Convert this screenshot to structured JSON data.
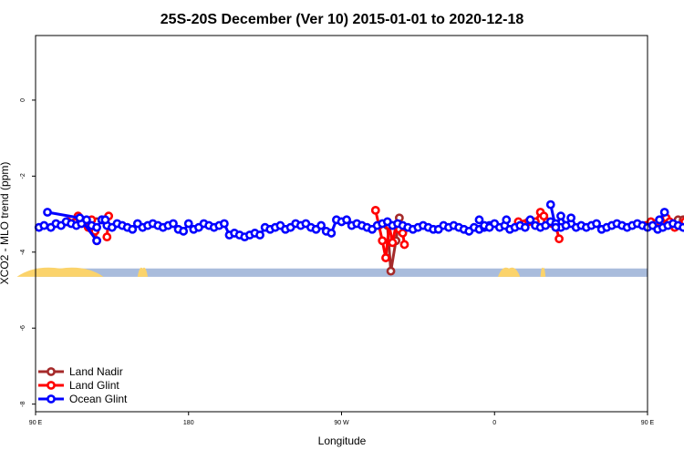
{
  "chart_data": {
    "type": "line",
    "title": "25S-20S December (Ver 10)   2015-01-01 to 2020-12-18",
    "xlabel": "Longitude",
    "ylabel": "XCO2 - MLO trend (ppm)",
    "xlim": [
      90,
      450
    ],
    "ylim": [
      -8.2,
      1.7
    ],
    "xticks": [
      {
        "value": 90,
        "label": "90 E"
      },
      {
        "value": 180,
        "label": "180"
      },
      {
        "value": 270,
        "label": "90 W"
      },
      {
        "value": 360,
        "label": "0"
      },
      {
        "value": 450,
        "label": "90 E"
      },
      {
        "value": 540,
        "label": "180"
      }
    ],
    "yticks": [
      {
        "value": 0,
        "label": "0"
      },
      {
        "value": -2,
        "label": "-2"
      },
      {
        "value": -4,
        "label": "-4"
      },
      {
        "value": -6,
        "label": "-6"
      },
      {
        "value": -8,
        "label": "-8"
      }
    ],
    "legend": {
      "position": "bottom-left",
      "entries": [
        {
          "name": "Land Nadir",
          "color": "#a52a2a"
        },
        {
          "name": "Land Glint",
          "color": "#ff0000"
        },
        {
          "name": "Ocean Glint",
          "color": "#0000ff"
        }
      ]
    },
    "background_band": {
      "y_top": -4.43,
      "y_bottom": -4.65,
      "ocean_color": "#a9bcdc",
      "land_color": "#fbd36b"
    },
    "series": [
      {
        "name": "Land Nadir",
        "color": "#a52a2a",
        "segments": [
          {
            "x": [
              115,
              119,
              123,
              126,
              129
            ],
            "y": [
              -3.15,
              -3.2,
              -3.25,
              -3.2,
              -3.15
            ]
          },
          {
            "x": [
              297,
              299,
              302,
              304
            ],
            "y": [
              -3.3,
              -4.5,
              -3.7,
              -3.1
            ]
          },
          {
            "x": [
              462,
              465,
              468,
              471
            ],
            "y": [
              -3.2,
              -3.25,
              -3.15,
              -3.15
            ]
          }
        ]
      },
      {
        "name": "Land Glint",
        "color": "#ff0000",
        "segments": [
          {
            "x": [
              109,
              113,
              115,
              118,
              121,
              123,
              125,
              126
            ],
            "y": [
              -3.2,
              -3.22,
              -3.05,
              -3.2,
              -3.35,
              -3.15,
              -3.45,
              -3.7
            ]
          },
          {
            "x": [
              132,
              133
            ],
            "y": [
              -3.6,
              -3.05
            ]
          },
          {
            "x": [
              290,
              292,
              294,
              296,
              298,
              300,
              302,
              304
            ],
            "y": [
              -2.9,
              -3.3,
              -3.7,
              -4.15,
              -3.3,
              -3.75,
              -3.3,
              -3.4
            ]
          },
          {
            "x": [
              306,
              307
            ],
            "y": [
              -3.5,
              -3.8
            ]
          },
          {
            "x": [
              374,
              378,
              380,
              384,
              387,
              389,
              391,
              394,
              396,
              398
            ],
            "y": [
              -3.2,
              -3.25,
              -3.2,
              -3.2,
              -2.95,
              -3.05,
              -3.2,
              -3.25,
              -3.3,
              -3.65
            ]
          },
          {
            "x": [
              449,
              452,
              455,
              458,
              461,
              463,
              466,
              469,
              472
            ],
            "y": [
              -3.3,
              -3.2,
              -3.25,
              -3.25,
              -3.1,
              -3.2,
              -3.35,
              -3.3,
              -3.2
            ]
          },
          {
            "x": [
              473,
              475
            ],
            "y": [
              -3.35,
              -3.7
            ]
          },
          {
            "x": [
              481,
              483
            ],
            "y": [
              -3.6,
              -3.05
            ]
          }
        ]
      },
      {
        "name": "Ocean Glint",
        "color": "#0000ff",
        "segments": [
          {
            "x": [
              92,
              95,
              99,
              102,
              105,
              108,
              111,
              114,
              117,
              120,
              123,
              126,
              129,
              132,
              135,
              138,
              141,
              144,
              147,
              150,
              153,
              156,
              159,
              162,
              165,
              168,
              171,
              174,
              177,
              180,
              183,
              186,
              189,
              192,
              195,
              198,
              201,
              204,
              207,
              210,
              213,
              216,
              219,
              222,
              225,
              228,
              231,
              234,
              237,
              240,
              243,
              246,
              249,
              252,
              255,
              258,
              261,
              264,
              267,
              270,
              273,
              276,
              279,
              282,
              285,
              288,
              291,
              294,
              297,
              300,
              303,
              306,
              309,
              312,
              315,
              318,
              321,
              324,
              327,
              330,
              333,
              336,
              339,
              342,
              345,
              348,
              351,
              354,
              357,
              360,
              363,
              366,
              369,
              372,
              375,
              378,
              381,
              384,
              387,
              390,
              393,
              396,
              399,
              402,
              405,
              408,
              411,
              414,
              417,
              420,
              423,
              426,
              429,
              432,
              435,
              438,
              441,
              444,
              447,
              450,
              453,
              456,
              459,
              462,
              465,
              468,
              471,
              474,
              477,
              480,
              483,
              486,
              489
            ],
            "y": [
              -3.35,
              -3.3,
              -3.35,
              -3.25,
              -3.3,
              -3.2,
              -3.25,
              -3.3,
              -3.25,
              -3.15,
              -3.3,
              -3.35,
              -3.15,
              -3.3,
              -3.35,
              -3.25,
              -3.3,
              -3.35,
              -3.4,
              -3.25,
              -3.35,
              -3.3,
              -3.25,
              -3.3,
              -3.35,
              -3.3,
              -3.25,
              -3.4,
              -3.45,
              -3.25,
              -3.4,
              -3.35,
              -3.25,
              -3.3,
              -3.35,
              -3.3,
              -3.25,
              -3.55,
              -3.5,
              -3.55,
              -3.6,
              -3.55,
              -3.5,
              -3.55,
              -3.35,
              -3.4,
              -3.35,
              -3.3,
              -3.4,
              -3.35,
              -3.25,
              -3.3,
              -3.25,
              -3.35,
              -3.4,
              -3.3,
              -3.45,
              -3.5,
              -3.15,
              -3.2,
              -3.15,
              -3.3,
              -3.25,
              -3.3,
              -3.35,
              -3.4,
              -3.3,
              -3.25,
              -3.2,
              -3.3,
              -3.25,
              -3.3,
              -3.35,
              -3.4,
              -3.35,
              -3.3,
              -3.35,
              -3.4,
              -3.4,
              -3.3,
              -3.35,
              -3.3,
              -3.35,
              -3.4,
              -3.45,
              -3.35,
              -3.4,
              -3.35,
              -3.3,
              -3.25,
              -3.35,
              -3.3,
              -3.4,
              -3.35,
              -3.3,
              -3.35,
              -3.15,
              -3.3,
              -3.35,
              -3.3,
              -3.2,
              -3.25,
              -3.35,
              -3.3,
              -3.25,
              -3.35,
              -3.3,
              -3.35,
              -3.3,
              -3.25,
              -3.4,
              -3.35,
              -3.3,
              -3.25,
              -3.3,
              -3.35,
              -3.3,
              -3.25,
              -3.3,
              -3.35,
              -3.3,
              -3.4,
              -3.35,
              -3.3,
              -3.25,
              -3.3,
              -3.35,
              -3.3,
              -3.25,
              -3.3,
              -3.4,
              -3.45,
              -3.4
            ]
          },
          {
            "x": [
              97,
              116,
              126
            ],
            "y": [
              -2.95,
              -3.1,
              -3.7
            ]
          },
          {
            "x": [
              131
            ],
            "y": [
              -3.15
            ]
          },
          {
            "x": [
              351,
              354,
              357
            ],
            "y": [
              -3.15,
              -3.3,
              -3.35
            ]
          },
          {
            "x": [
              367
            ],
            "y": [
              -3.15
            ]
          },
          {
            "x": [
              393,
              396,
              399,
              402,
              405
            ],
            "y": [
              -2.75,
              -3.35,
              -3.05,
              -3.3,
              -3.1
            ]
          },
          {
            "x": [
              457,
              460
            ],
            "y": [
              -3.15,
              -2.95
            ]
          },
          {
            "x": [
              475,
              477,
              480,
              483
            ],
            "y": [
              -3.65,
              -3.1,
              -3.35,
              -3.25
            ]
          }
        ]
      }
    ]
  }
}
